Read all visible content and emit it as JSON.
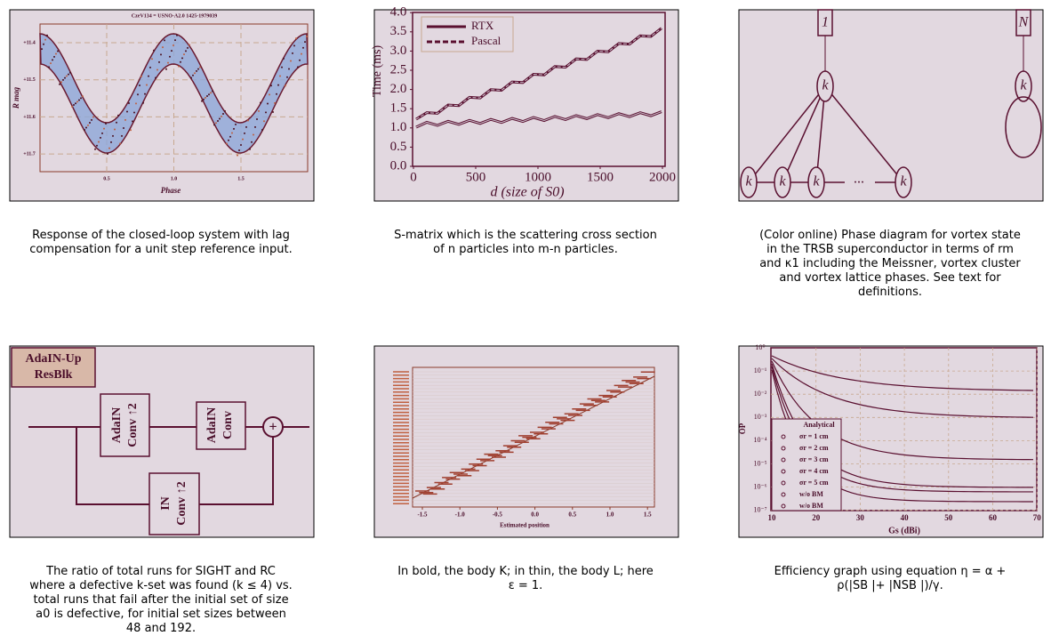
{
  "panels": [
    {
      "caption": "Response of the closed-loop system with lag compensation for a unit step reference input.",
      "figure": {
        "title": "CzeV134 = USNO-A2.0 1425-1979039",
        "y_label": "R mag",
        "x_label": "Phase",
        "yticks": [
          "+11.4",
          "+11.5",
          "+11.6",
          "+11.7"
        ],
        "xticks": [
          "0.5",
          "1.0",
          "1.5"
        ]
      }
    },
    {
      "caption": "S-matrix which is the scattering cross section of n particles into m-n particles.",
      "figure": {
        "legend": [
          "RTX",
          "Pascal"
        ],
        "y_label": "Time (ms)",
        "x_label": "d (size of S0)",
        "yticks": [
          "0.0",
          "0.5",
          "1.0",
          "1.5",
          "2.0",
          "2.5",
          "3.0",
          "3.5",
          "4.0"
        ],
        "xticks": [
          "0",
          "500",
          "1000",
          "1500",
          "2000"
        ]
      }
    },
    {
      "caption": "(Color online) Phase diagram for vortex state in the TRSB superconductor in terms of rm and κ1 including the Meissner, vortex cluster and vortex lattice phases. See text for definitions.",
      "figure": {
        "top_nodes": [
          "1",
          "N"
        ],
        "hubs": [
          "k",
          "k"
        ],
        "leaves": [
          "k",
          "k",
          "k",
          "k"
        ],
        "ellipsis": "..."
      }
    },
    {
      "caption": "The ratio of total runs for SIGHT and RC where a defective k-set was found (k ≤ 4) vs. total runs that fail after the initial set of size a0 is defective, for initial set sizes between 48 and 192.",
      "figure": {
        "title": [
          "AdaIN-Up",
          "ResBlk"
        ],
        "blocks": [
          [
            "AdaIN",
            "Conv ↑2"
          ],
          [
            "AdaIN",
            "Conv"
          ],
          [
            "IN",
            "Conv ↑2"
          ]
        ],
        "sum": "+"
      }
    },
    {
      "caption": "In bold, the body K; in thin, the body L; here ε = 1.",
      "figure": {
        "x_label": "Estimated position",
        "xticks": [
          "-1.5",
          "-1.0",
          "-0.5",
          "0.0",
          "0.5",
          "1.0",
          "1.5"
        ]
      }
    },
    {
      "caption": "Efficiency graph using equation η = α + ρ(|SB |+ |NSB |)/γ.",
      "figure": {
        "y_label": "OP",
        "x_label": "Gs (dBi)",
        "yticks": [
          "10⁰",
          "10⁻¹",
          "10⁻²",
          "10⁻³",
          "10⁻⁴",
          "10⁻⁵",
          "10⁻⁶",
          "10⁻⁷"
        ],
        "xticks": [
          "10",
          "20",
          "30",
          "40",
          "50",
          "60",
          "70"
        ],
        "legend_title": "Analytical",
        "legend": [
          "σr = 1 cm",
          "σr = 2 cm",
          "σr = 3 cm",
          "σr = 4 cm",
          "σr = 5 cm",
          "w/o BM",
          "w/o BM"
        ]
      }
    }
  ]
}
